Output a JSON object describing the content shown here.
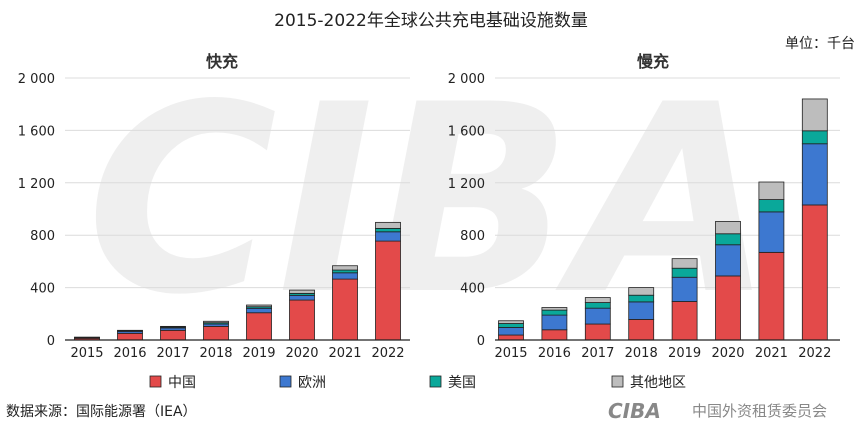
{
  "title": "2015-2022年全球公共充电基础设施数量",
  "unit": "单位：千台",
  "source": "数据来源：国际能源署（IEA）",
  "logo": {
    "mark": "CIBA",
    "name": "中国外资租赁委员会"
  },
  "watermark": "CIBA",
  "colors": {
    "中国": "#e34a4a",
    "欧洲": "#3d78d0",
    "美国": "#0aa89a",
    "其他地区": "#bdbdbd"
  },
  "legend": [
    "中国",
    "欧洲",
    "美国",
    "其他地区"
  ],
  "chart_data": [
    {
      "type": "bar",
      "stacked": true,
      "title": "快充",
      "categories": [
        "2015",
        "2016",
        "2017",
        "2018",
        "2019",
        "2020",
        "2021",
        "2022"
      ],
      "ylim": [
        0,
        2000
      ],
      "yticks": [
        0,
        400,
        800,
        1200,
        1600,
        2000
      ],
      "ytick_labels": [
        "0",
        "400",
        "800",
        "1 200",
        "1 600",
        "2 000"
      ],
      "series": [
        {
          "name": "中国",
          "values": [
            13,
            51,
            74,
            104,
            208,
            305,
            465,
            755
          ]
        },
        {
          "name": "欧洲",
          "values": [
            5,
            15,
            18,
            18,
            34,
            36,
            48,
            71
          ]
        },
        {
          "name": "美国",
          "values": [
            2,
            5,
            7,
            10,
            12,
            15,
            21,
            26
          ]
        },
        {
          "name": "其他地区",
          "values": [
            2,
            3,
            5,
            11,
            13,
            25,
            33,
            46
          ]
        }
      ]
    },
    {
      "type": "bar",
      "stacked": true,
      "title": "慢充",
      "categories": [
        "2015",
        "2016",
        "2017",
        "2018",
        "2019",
        "2020",
        "2021",
        "2022"
      ],
      "ylim": [
        0,
        2000
      ],
      "yticks": [
        0,
        400,
        800,
        1200,
        1600,
        2000
      ],
      "ytick_labels": [
        "0",
        "400",
        "800",
        "1 200",
        "1 600",
        "2 000"
      ],
      "series": [
        {
          "name": "中国",
          "values": [
            38,
            78,
            122,
            157,
            294,
            489,
            669,
            1031
          ]
        },
        {
          "name": "欧洲",
          "values": [
            58,
            112,
            121,
            134,
            185,
            238,
            309,
            467
          ]
        },
        {
          "name": "美国",
          "values": [
            30,
            38,
            43,
            51,
            69,
            84,
            94,
            99
          ]
        },
        {
          "name": "其他地区",
          "values": [
            21,
            20,
            38,
            58,
            73,
            94,
            134,
            243
          ]
        }
      ]
    }
  ]
}
